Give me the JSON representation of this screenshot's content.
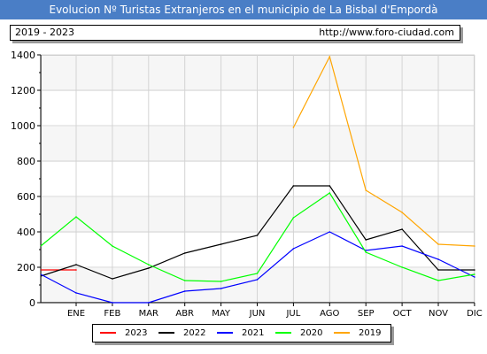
{
  "header": {
    "title": "Evolucion Nº Turistas Extranjeros en el municipio de La Bisbal d'Empordà",
    "period": "2019 - 2023",
    "url": "http://www.foro-ciudad.com"
  },
  "chart_data": {
    "type": "line",
    "title": "Evolucion Nº Turistas Extranjeros en el municipio de La Bisbal d'Empordà",
    "xlabel": "",
    "ylabel": "",
    "categories": [
      "ENE",
      "FEB",
      "MAR",
      "ABR",
      "MAY",
      "JUN",
      "JUL",
      "AGO",
      "SEP",
      "OCT",
      "NOV",
      "DIC"
    ],
    "ylim": [
      0,
      1400
    ],
    "yticks": [
      0,
      200,
      400,
      600,
      800,
      1000,
      1200,
      1400
    ],
    "grid": true,
    "legend_position": "bottom",
    "series": [
      {
        "name": "2023",
        "color": "#ff0000",
        "values": [
          185,
          null,
          null,
          null,
          null,
          null,
          null,
          null,
          null,
          null,
          null,
          null
        ]
      },
      {
        "name": "2022",
        "color": "#000000",
        "values": [
          215,
          135,
          195,
          280,
          330,
          380,
          660,
          660,
          355,
          415,
          185,
          185
        ]
      },
      {
        "name": "2021",
        "color": "#0000ff",
        "values": [
          55,
          0,
          0,
          65,
          80,
          130,
          305,
          400,
          295,
          320,
          245,
          145
        ]
      },
      {
        "name": "2020",
        "color": "#00ff00",
        "values": [
          485,
          320,
          215,
          125,
          120,
          165,
          480,
          620,
          285,
          200,
          125,
          160
        ]
      },
      {
        "name": "2019",
        "color": "#ffa500",
        "values": [
          null,
          null,
          null,
          null,
          null,
          null,
          990,
          1390,
          635,
          510,
          330,
          320
        ]
      }
    ],
    "left_edge_values": {
      "2022": 150,
      "2021": 160,
      "2020": 320
    }
  }
}
